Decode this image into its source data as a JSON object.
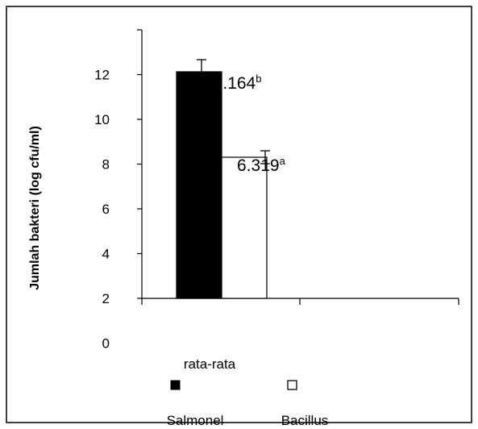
{
  "chart_data": {
    "type": "bar",
    "ylabel": "Jumlah bakteri (log cfu/ml)",
    "ylim": [
      0,
      14
    ],
    "yticks": [
      0,
      2,
      4,
      6,
      8,
      10,
      12
    ],
    "categories": [
      "rata-rata"
    ],
    "series": [
      {
        "name": "Salmonel",
        "values": [
          10.164
        ],
        "error": [
          0.5
        ],
        "label": "10.164",
        "superscript": "b",
        "color": "#000000"
      },
      {
        "name": "Bacillus",
        "values": [
          6.319
        ],
        "error": [
          0.3
        ],
        "label": "6.319",
        "superscript": "a",
        "color": "#ffffff"
      }
    ],
    "grid": false,
    "legend_position": "bottom"
  }
}
